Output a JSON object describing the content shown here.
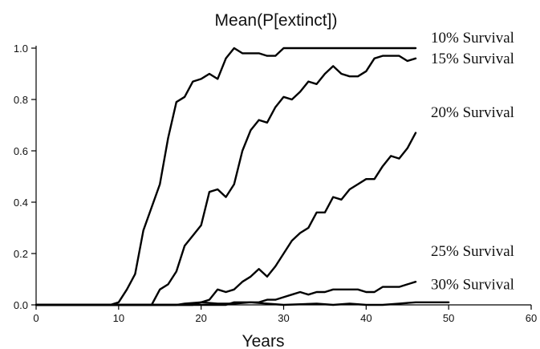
{
  "chart_data": {
    "type": "line",
    "title": "Mean(P[extinct])",
    "xlabel": "Years",
    "ylabel": "",
    "xlim": [
      0,
      60
    ],
    "ylim": [
      0,
      1.0
    ],
    "x_ticks": [
      "0",
      "10",
      "20",
      "30",
      "40",
      "50",
      "60"
    ],
    "y_ticks": [
      "0.0",
      "0.2",
      "0.4",
      "0.6",
      "0.8",
      "1.0"
    ],
    "grid": false,
    "legend": "none",
    "series": [
      {
        "name": "10% Survival",
        "x": [
          0,
          9,
          10,
          11,
          12,
          13,
          14,
          15,
          16,
          17,
          18,
          19,
          20,
          21,
          22,
          23,
          24,
          25,
          26,
          27,
          28,
          29,
          30,
          31,
          32,
          33,
          34,
          35,
          36,
          37,
          38,
          39,
          40,
          41,
          42,
          43,
          44,
          45,
          46
        ],
        "y": [
          0,
          0,
          0.01,
          0.06,
          0.12,
          0.29,
          0.38,
          0.47,
          0.65,
          0.79,
          0.81,
          0.87,
          0.88,
          0.9,
          0.88,
          0.96,
          1.0,
          0.98,
          0.98,
          0.98,
          0.97,
          0.97,
          1.0,
          1.0,
          1.0,
          1.0,
          1.0,
          1.0,
          1.0,
          1.0,
          1.0,
          1.0,
          1.0,
          1.0,
          1.0,
          1.0,
          1.0,
          1.0,
          1.0
        ]
      },
      {
        "name": "15% Survival",
        "x": [
          0,
          14,
          15,
          16,
          17,
          18,
          19,
          20,
          21,
          22,
          23,
          24,
          25,
          26,
          27,
          28,
          29,
          30,
          31,
          32,
          33,
          34,
          35,
          36,
          37,
          38,
          39,
          40,
          41,
          42,
          43,
          44,
          45,
          46
        ],
        "y": [
          0,
          0,
          0.06,
          0.08,
          0.13,
          0.23,
          0.27,
          0.31,
          0.44,
          0.45,
          0.42,
          0.47,
          0.6,
          0.68,
          0.72,
          0.71,
          0.77,
          0.81,
          0.8,
          0.83,
          0.87,
          0.86,
          0.9,
          0.93,
          0.9,
          0.89,
          0.89,
          0.91,
          0.96,
          0.97,
          0.97,
          0.97,
          0.95,
          0.96
        ]
      },
      {
        "name": "20% Survival",
        "x": [
          0,
          19,
          20,
          21,
          22,
          23,
          24,
          25,
          26,
          27,
          28,
          29,
          30,
          31,
          32,
          33,
          34,
          35,
          36,
          37,
          38,
          39,
          40,
          41,
          42,
          43,
          44,
          45,
          46
        ],
        "y": [
          0,
          0,
          0.01,
          0.02,
          0.06,
          0.05,
          0.06,
          0.09,
          0.11,
          0.14,
          0.11,
          0.15,
          0.2,
          0.25,
          0.28,
          0.3,
          0.36,
          0.36,
          0.42,
          0.41,
          0.45,
          0.47,
          0.49,
          0.49,
          0.54,
          0.58,
          0.57,
          0.61,
          0.67
        ]
      },
      {
        "name": "25% Survival",
        "x": [
          0,
          21,
          22,
          23,
          24,
          25,
          26,
          27,
          28,
          29,
          30,
          31,
          32,
          33,
          34,
          35,
          36,
          37,
          38,
          39,
          40,
          41,
          42,
          43,
          44,
          45,
          46
        ],
        "y": [
          0,
          0,
          0,
          0,
          0.01,
          0.01,
          0.01,
          0.01,
          0.02,
          0.02,
          0.03,
          0.04,
          0.05,
          0.04,
          0.05,
          0.05,
          0.06,
          0.06,
          0.06,
          0.06,
          0.05,
          0.05,
          0.07,
          0.07,
          0.07,
          0.08,
          0.09
        ]
      },
      {
        "name": "30% Survival",
        "x": [
          0,
          17,
          18,
          20,
          22,
          24,
          26,
          28,
          30,
          34,
          36,
          38,
          40,
          42,
          44,
          46,
          50
        ],
        "y": [
          0,
          0,
          0.005,
          0.01,
          0.005,
          0.005,
          0.01,
          0.005,
          0,
          0.005,
          0,
          0.005,
          0,
          0,
          0.005,
          0.01,
          0.01
        ]
      }
    ],
    "series_label_y": [
      1.04,
      0.96,
      0.75,
      0.21,
      0.08
    ]
  }
}
